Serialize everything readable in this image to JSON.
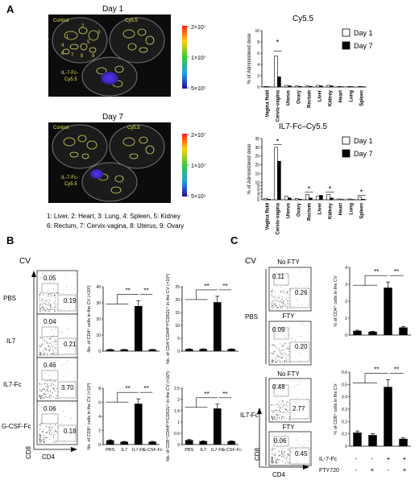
{
  "panels": {
    "A": {
      "letter": "A",
      "day1_title": "Day 1",
      "day7_title": "Day 7",
      "dish_labels": {
        "control": "Control",
        "cy55": "Cy5.5",
        "il7fc_line1": "IL-7-Fc-",
        "il7fc_line2": "Cy5.5"
      },
      "organ_numbers": [
        "1",
        "2",
        "3",
        "4",
        "5",
        "6",
        "7",
        "8",
        "9"
      ],
      "colorbar_ticks": [
        "2×10⁷",
        "1×10⁷",
        "5×10⁵"
      ],
      "legend_line1": "1: Liver, 2: Heart, 3: Lung, 4: Spleen, 5: Kidney",
      "legend_line2": "6: Rectum, 7: Cervix-vagina, 8: Uterus, 9: Ovary"
    },
    "B": {
      "letter": "B",
      "cv_label": "CV",
      "row_labels": [
        "PBS",
        "IL7",
        "IL7-Fc",
        "G-CSF-Fc"
      ],
      "gate_values": [
        [
          "0.05",
          "0.19"
        ],
        [
          "0.04",
          "0.21"
        ],
        [
          "0.46",
          "3.70"
        ],
        [
          "0.06",
          "0.18"
        ]
      ],
      "x_axis": "CD4",
      "y_axis": "CD8"
    },
    "C": {
      "letter": "C",
      "cv_label": "CV",
      "group_labels": [
        "PBS",
        "IL7-Fc"
      ],
      "plot_titles": [
        "No FTY",
        "FTY",
        "No FTY",
        "FTY"
      ],
      "gate_values": [
        [
          "0.11",
          "0.26"
        ],
        [
          "0.09",
          "0.20"
        ],
        [
          "0.48",
          "2.77"
        ],
        [
          "0.06",
          "0.45"
        ]
      ],
      "x_axis": "CD4",
      "y_axis": "CD8",
      "treat_rows": [
        {
          "label": "IL-7-Fc",
          "signs": [
            "-",
            "-",
            "+",
            "+"
          ]
        },
        {
          "label": "FTY720",
          "signs": [
            "-",
            "+",
            "-",
            "+"
          ]
        }
      ]
    }
  },
  "chart_data": [
    {
      "id": "cy55",
      "type": "bar",
      "title": "Cy5.5",
      "ylabel": "% of Administered dose",
      "categories": [
        "Vagina fluid",
        "Cervix-vagina",
        "Uterus",
        "Ovary",
        "Rectum",
        "Liver",
        "Kidney",
        "Heart",
        "Lung",
        "Spleen"
      ],
      "series": [
        {
          "name": "Day 1",
          "values": [
            0.1,
            5.5,
            0.3,
            0.2,
            0.2,
            0.3,
            0.3,
            0.1,
            0.1,
            0.1
          ]
        },
        {
          "name": "Day 7",
          "values": [
            0.05,
            1.8,
            0.2,
            0.1,
            0.1,
            0.2,
            0.2,
            0.05,
            0.05,
            0.05
          ]
        }
      ],
      "ylim": [
        0,
        10
      ],
      "yticks": [
        "0",
        "2",
        "4",
        "6",
        "8",
        "10"
      ],
      "legend": "top-right",
      "annotations": [
        "*"
      ]
    },
    {
      "id": "il7fc",
      "type": "bar",
      "title": "IL7-Fc–Cy5.5",
      "ylabel": "% of Administered dose",
      "categories": [
        "Vagina fluid",
        "Cervix-vagina",
        "Uterus",
        "Ovary",
        "Rectum",
        "Liver",
        "Kidney",
        "Heart",
        "Lung",
        "Spleen"
      ],
      "series": [
        {
          "name": "Day 1",
          "values": [
            0.8,
            30,
            2.0,
            0.8,
            3.0,
            2.0,
            3.0,
            0.5,
            0.5,
            1.5
          ]
        },
        {
          "name": "Day 7",
          "values": [
            0.3,
            22,
            1.0,
            0.3,
            1.0,
            2.5,
            1.0,
            0.2,
            0.2,
            0.3
          ]
        }
      ],
      "ylim": [
        0,
        35
      ],
      "yticks": [
        "0",
        "2",
        "4",
        "6",
        "8",
        "10",
        "15",
        "20",
        "25",
        "30",
        "35"
      ],
      "legend": "top-right",
      "annotations": [
        "*",
        "*",
        "*",
        "*"
      ]
    },
    {
      "id": "b_cd4",
      "type": "bar",
      "ylabel": "No. of CD4⁺ cells in the CV (×10³)",
      "categories": [
        "PBS",
        "IL7",
        "IL7-Fc",
        "G-CSF-Fc"
      ],
      "values": [
        1.0,
        1.0,
        28,
        1.0
      ],
      "ylim": [
        0,
        40
      ],
      "yticks": [
        "0",
        "10",
        "20",
        "30",
        "40"
      ],
      "annotations": [
        "**",
        "**"
      ]
    },
    {
      "id": "b_cd4_cd44",
      "type": "bar",
      "ylabel": "No. of CD4⁺CD44ʰⁱᵍʰCD62Lˡᵒ in the CV (×10³)",
      "categories": [
        "PBS",
        "IL7",
        "IL7-Fc",
        "G-CSF-Fc"
      ],
      "values": [
        0.8,
        0.8,
        19,
        0.8
      ],
      "ylim": [
        0,
        25
      ],
      "yticks": [
        "0",
        "5",
        "10",
        "15",
        "20",
        "25"
      ],
      "annotations": [
        "**",
        "**"
      ]
    },
    {
      "id": "b_cd8",
      "type": "bar",
      "ylabel": "No. of CD8⁺ cells in the CV (×10³)",
      "categories": [
        "PBS",
        "IL7",
        "IL7-Fc",
        "G-CSF-Fc"
      ],
      "values": [
        0.6,
        0.4,
        5.8,
        0.4
      ],
      "ylim": [
        0,
        8
      ],
      "yticks": [
        "0",
        "2",
        "4",
        "6",
        "8"
      ],
      "annotations": [
        "**",
        "**"
      ]
    },
    {
      "id": "b_cd8_cd44",
      "type": "bar",
      "ylabel": "No. of CD8⁺CD44ʰⁱᵍʰCD62Lˡᵒ in the CV (×10³)",
      "categories": [
        "PBS",
        "IL7",
        "IL7-Fc",
        "G-CSF-Fc"
      ],
      "values": [
        0.2,
        0.15,
        1.6,
        0.15
      ],
      "ylim": [
        0,
        2.5
      ],
      "yticks": [
        "0",
        "0.5",
        "1",
        "1.5",
        "2",
        "2.5"
      ],
      "annotations": [
        "**",
        "**"
      ]
    },
    {
      "id": "c_cd4",
      "type": "bar",
      "ylabel": "% of CD4⁺ cells in the CV",
      "values": [
        0.25,
        0.2,
        2.8,
        0.45
      ],
      "ylim": [
        0,
        4
      ],
      "yticks": [
        "0",
        "1",
        "2",
        "3",
        "4"
      ],
      "annotations": [
        "**",
        "**"
      ]
    },
    {
      "id": "c_cd8",
      "type": "bar",
      "ylabel": "% of CD8⁺ cells in the CV",
      "values": [
        0.11,
        0.09,
        0.48,
        0.06
      ],
      "ylim": [
        0,
        0.6
      ],
      "yticks": [
        "0",
        "0.1",
        "0.2",
        "0.3",
        "0.4",
        "0.5",
        "0.6"
      ],
      "annotations": [
        "**",
        "**"
      ]
    }
  ]
}
